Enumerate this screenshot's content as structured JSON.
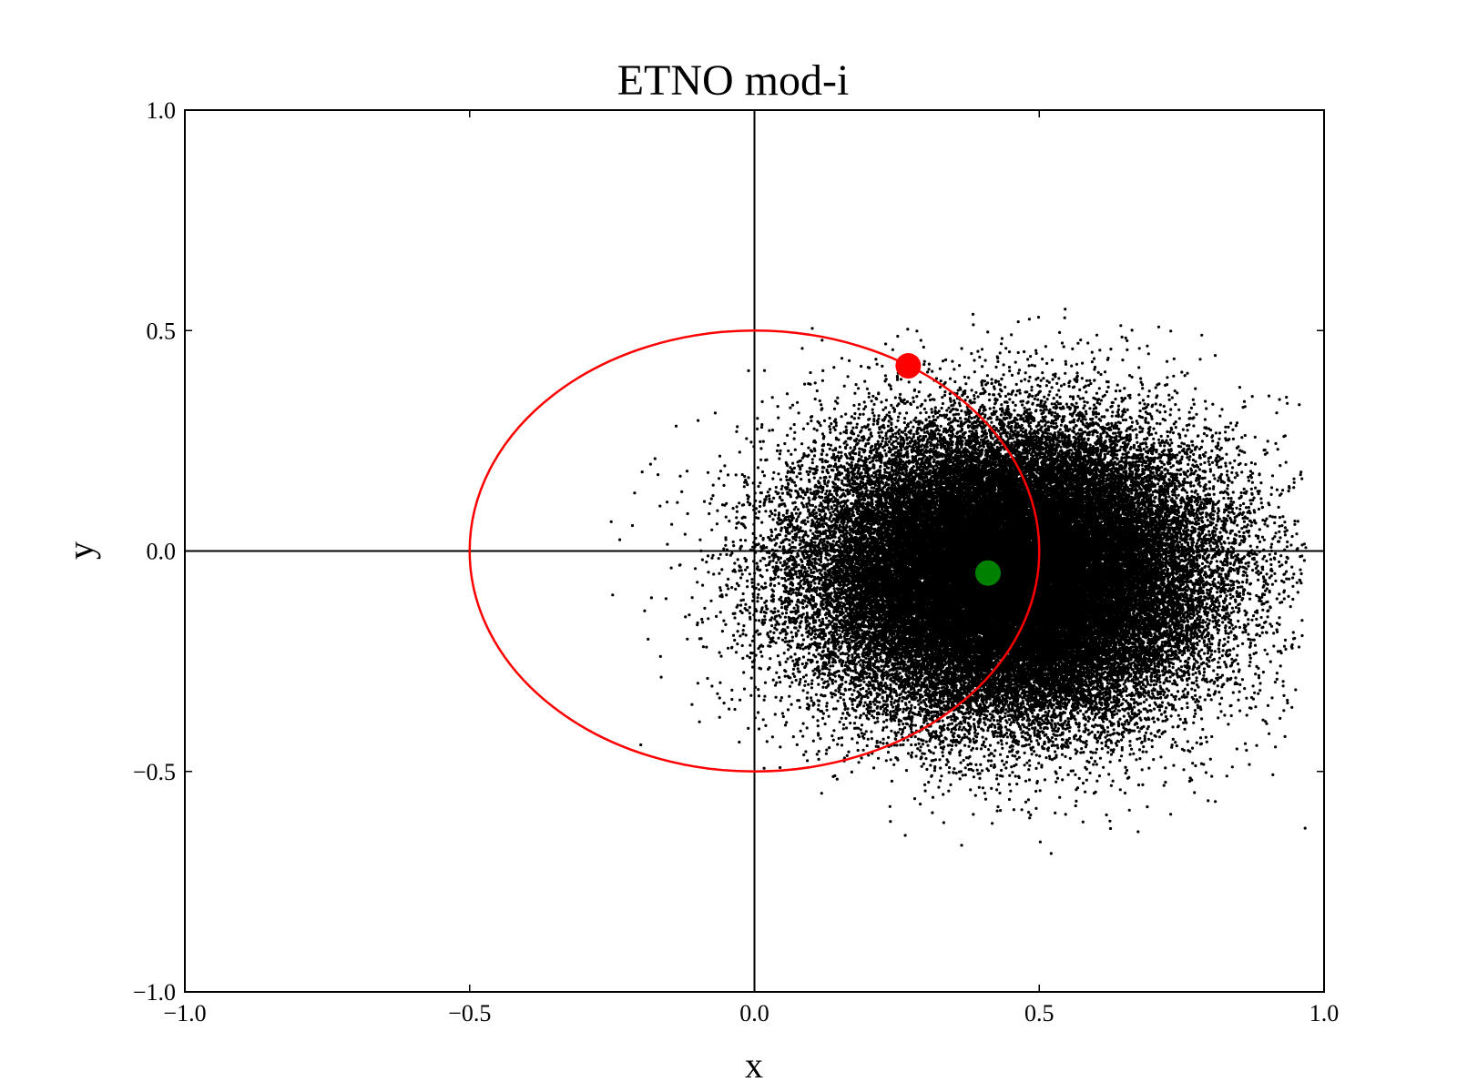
{
  "chart_data": {
    "type": "scatter",
    "title": "ETNO mod-i",
    "xlabel": "x",
    "ylabel": "y",
    "xlim": [
      -1.0,
      1.0
    ],
    "ylim": [
      -1.0,
      1.0
    ],
    "x_ticks": [
      -1.0,
      -0.5,
      0.0,
      0.5,
      1.0
    ],
    "y_ticks": [
      -1.0,
      -0.5,
      0.0,
      0.5,
      1.0
    ],
    "x_tick_labels": [
      "−1.0",
      "−0.5",
      "0.0",
      "0.5",
      "1.0"
    ],
    "y_tick_labels": [
      "−1.0",
      "−0.5",
      "0.0",
      "0.5",
      "1.0"
    ],
    "grid": false,
    "reference_lines": {
      "x": 0.0,
      "y": 0.0,
      "color": "#000000"
    },
    "cloud": {
      "description_center_x": 0.45,
      "description_center_y": -0.05,
      "sigma_x": 0.17,
      "sigma_y": 0.16,
      "sample_count": 60000,
      "x_range": [
        -0.38,
        0.97
      ],
      "y_range": [
        -0.7,
        0.55
      ],
      "color": "#000000"
    },
    "orbit": {
      "center": [
        0.0,
        0.0
      ],
      "radius_x": 0.5,
      "radius_y": 0.5,
      "color": "#ff0000"
    },
    "markers": [
      {
        "x": 0.27,
        "y": 0.42,
        "color": "#ff0000"
      },
      {
        "x": 0.41,
        "y": -0.05,
        "color": "#008000"
      }
    ]
  }
}
